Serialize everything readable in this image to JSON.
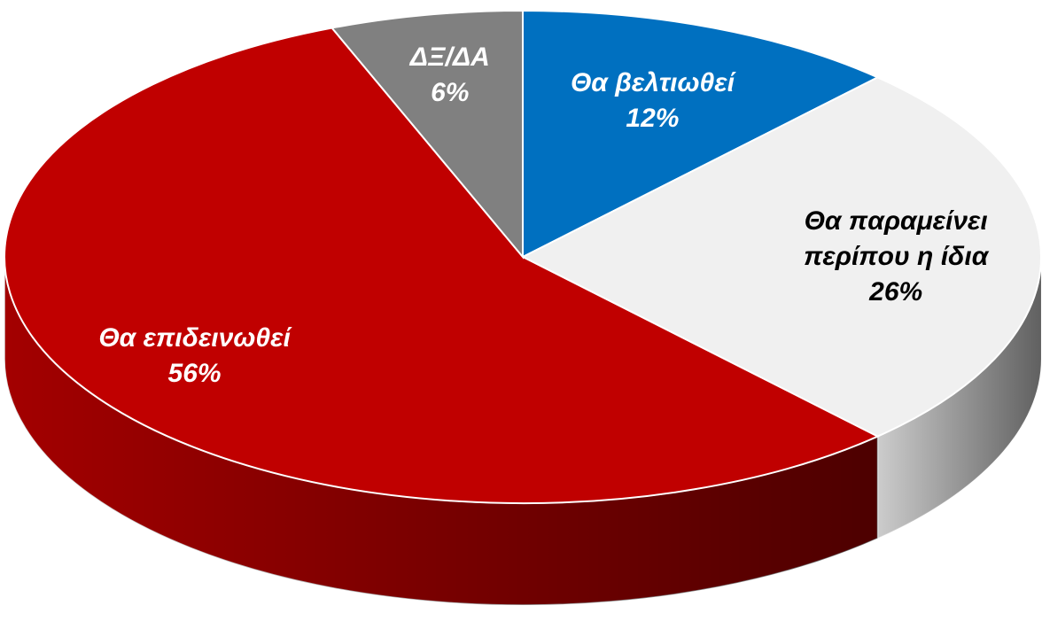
{
  "chart_data": {
    "type": "pie",
    "categories": [
      "Θα βελτιωθεί",
      "Θα παραμείνει περίπου η ίδια",
      "Θα επιδεινωθεί",
      "ΔΞ/ΔΑ"
    ],
    "values": [
      12,
      26,
      56,
      6
    ],
    "value_labels": [
      "12%",
      "26%",
      "56%",
      "6%"
    ],
    "colors": [
      "#0070c0",
      "#f0f0f0",
      "#c00000",
      "#808080"
    ]
  }
}
